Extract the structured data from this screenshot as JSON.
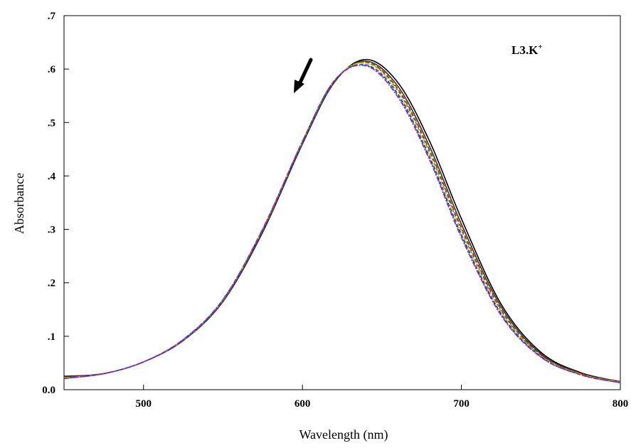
{
  "chart_data": {
    "type": "line",
    "annotation": "L3.K",
    "annotation_superscript": "+",
    "xlabel": "Wavelength (nm)",
    "ylabel": "Absorbance",
    "xlim": [
      450,
      800
    ],
    "ylim": [
      0,
      0.7
    ],
    "x_ticks": [
      500,
      600,
      700,
      800
    ],
    "x_tick_labels": [
      "500",
      "600",
      "700",
      "800"
    ],
    "y_ticks": [
      0,
      0.1,
      0.2,
      0.3,
      0.4,
      0.5,
      0.6,
      0.7
    ],
    "y_tick_labels": [
      "0.0",
      ".1",
      ".2",
      ".3",
      ".4",
      ".5",
      ".6",
      ".7"
    ],
    "grid": false,
    "legend": "none",
    "arrow_direction": "down-left (decreasing absorbance)",
    "x": [
      450,
      475,
      500,
      525,
      550,
      575,
      600,
      620,
      640,
      660,
      680,
      700,
      725,
      750,
      775,
      800
    ],
    "series": [
      {
        "color": "#000000",
        "dash": "",
        "values": [
          0.025,
          0.03,
          0.052,
          0.092,
          0.165,
          0.295,
          0.46,
          0.575,
          0.618,
          0.575,
          0.465,
          0.32,
          0.16,
          0.07,
          0.032,
          0.015
        ]
      },
      {
        "color": "#333333",
        "dash": "",
        "values": [
          0.024,
          0.03,
          0.052,
          0.092,
          0.166,
          0.297,
          0.462,
          0.576,
          0.615,
          0.568,
          0.455,
          0.31,
          0.155,
          0.067,
          0.031,
          0.015
        ]
      },
      {
        "color": "#d01010",
        "dash": "6,3",
        "values": [
          0.023,
          0.03,
          0.052,
          0.093,
          0.167,
          0.298,
          0.463,
          0.577,
          0.613,
          0.563,
          0.448,
          0.303,
          0.15,
          0.065,
          0.03,
          0.014
        ]
      },
      {
        "color": "#20a020",
        "dash": "4,3",
        "values": [
          0.022,
          0.03,
          0.052,
          0.093,
          0.167,
          0.299,
          0.463,
          0.577,
          0.612,
          0.56,
          0.444,
          0.298,
          0.147,
          0.064,
          0.029,
          0.014
        ]
      },
      {
        "color": "#e0d020",
        "dash": "8,3,2,3",
        "values": [
          0.022,
          0.03,
          0.052,
          0.093,
          0.168,
          0.3,
          0.464,
          0.578,
          0.611,
          0.557,
          0.44,
          0.295,
          0.145,
          0.063,
          0.029,
          0.014
        ]
      },
      {
        "color": "#1030c0",
        "dash": "5,3",
        "values": [
          0.021,
          0.03,
          0.052,
          0.093,
          0.168,
          0.3,
          0.464,
          0.578,
          0.608,
          0.553,
          0.435,
          0.29,
          0.142,
          0.062,
          0.028,
          0.013
        ]
      },
      {
        "color": "#10a0a0",
        "dash": "3,3",
        "values": [
          0.021,
          0.03,
          0.052,
          0.094,
          0.168,
          0.3,
          0.464,
          0.578,
          0.607,
          0.55,
          0.432,
          0.287,
          0.14,
          0.061,
          0.028,
          0.013
        ]
      },
      {
        "color": "#a020a0",
        "dash": "7,2,2,2",
        "values": [
          0.021,
          0.03,
          0.052,
          0.094,
          0.169,
          0.301,
          0.465,
          0.578,
          0.606,
          0.548,
          0.43,
          0.285,
          0.139,
          0.061,
          0.028,
          0.013
        ]
      }
    ]
  }
}
